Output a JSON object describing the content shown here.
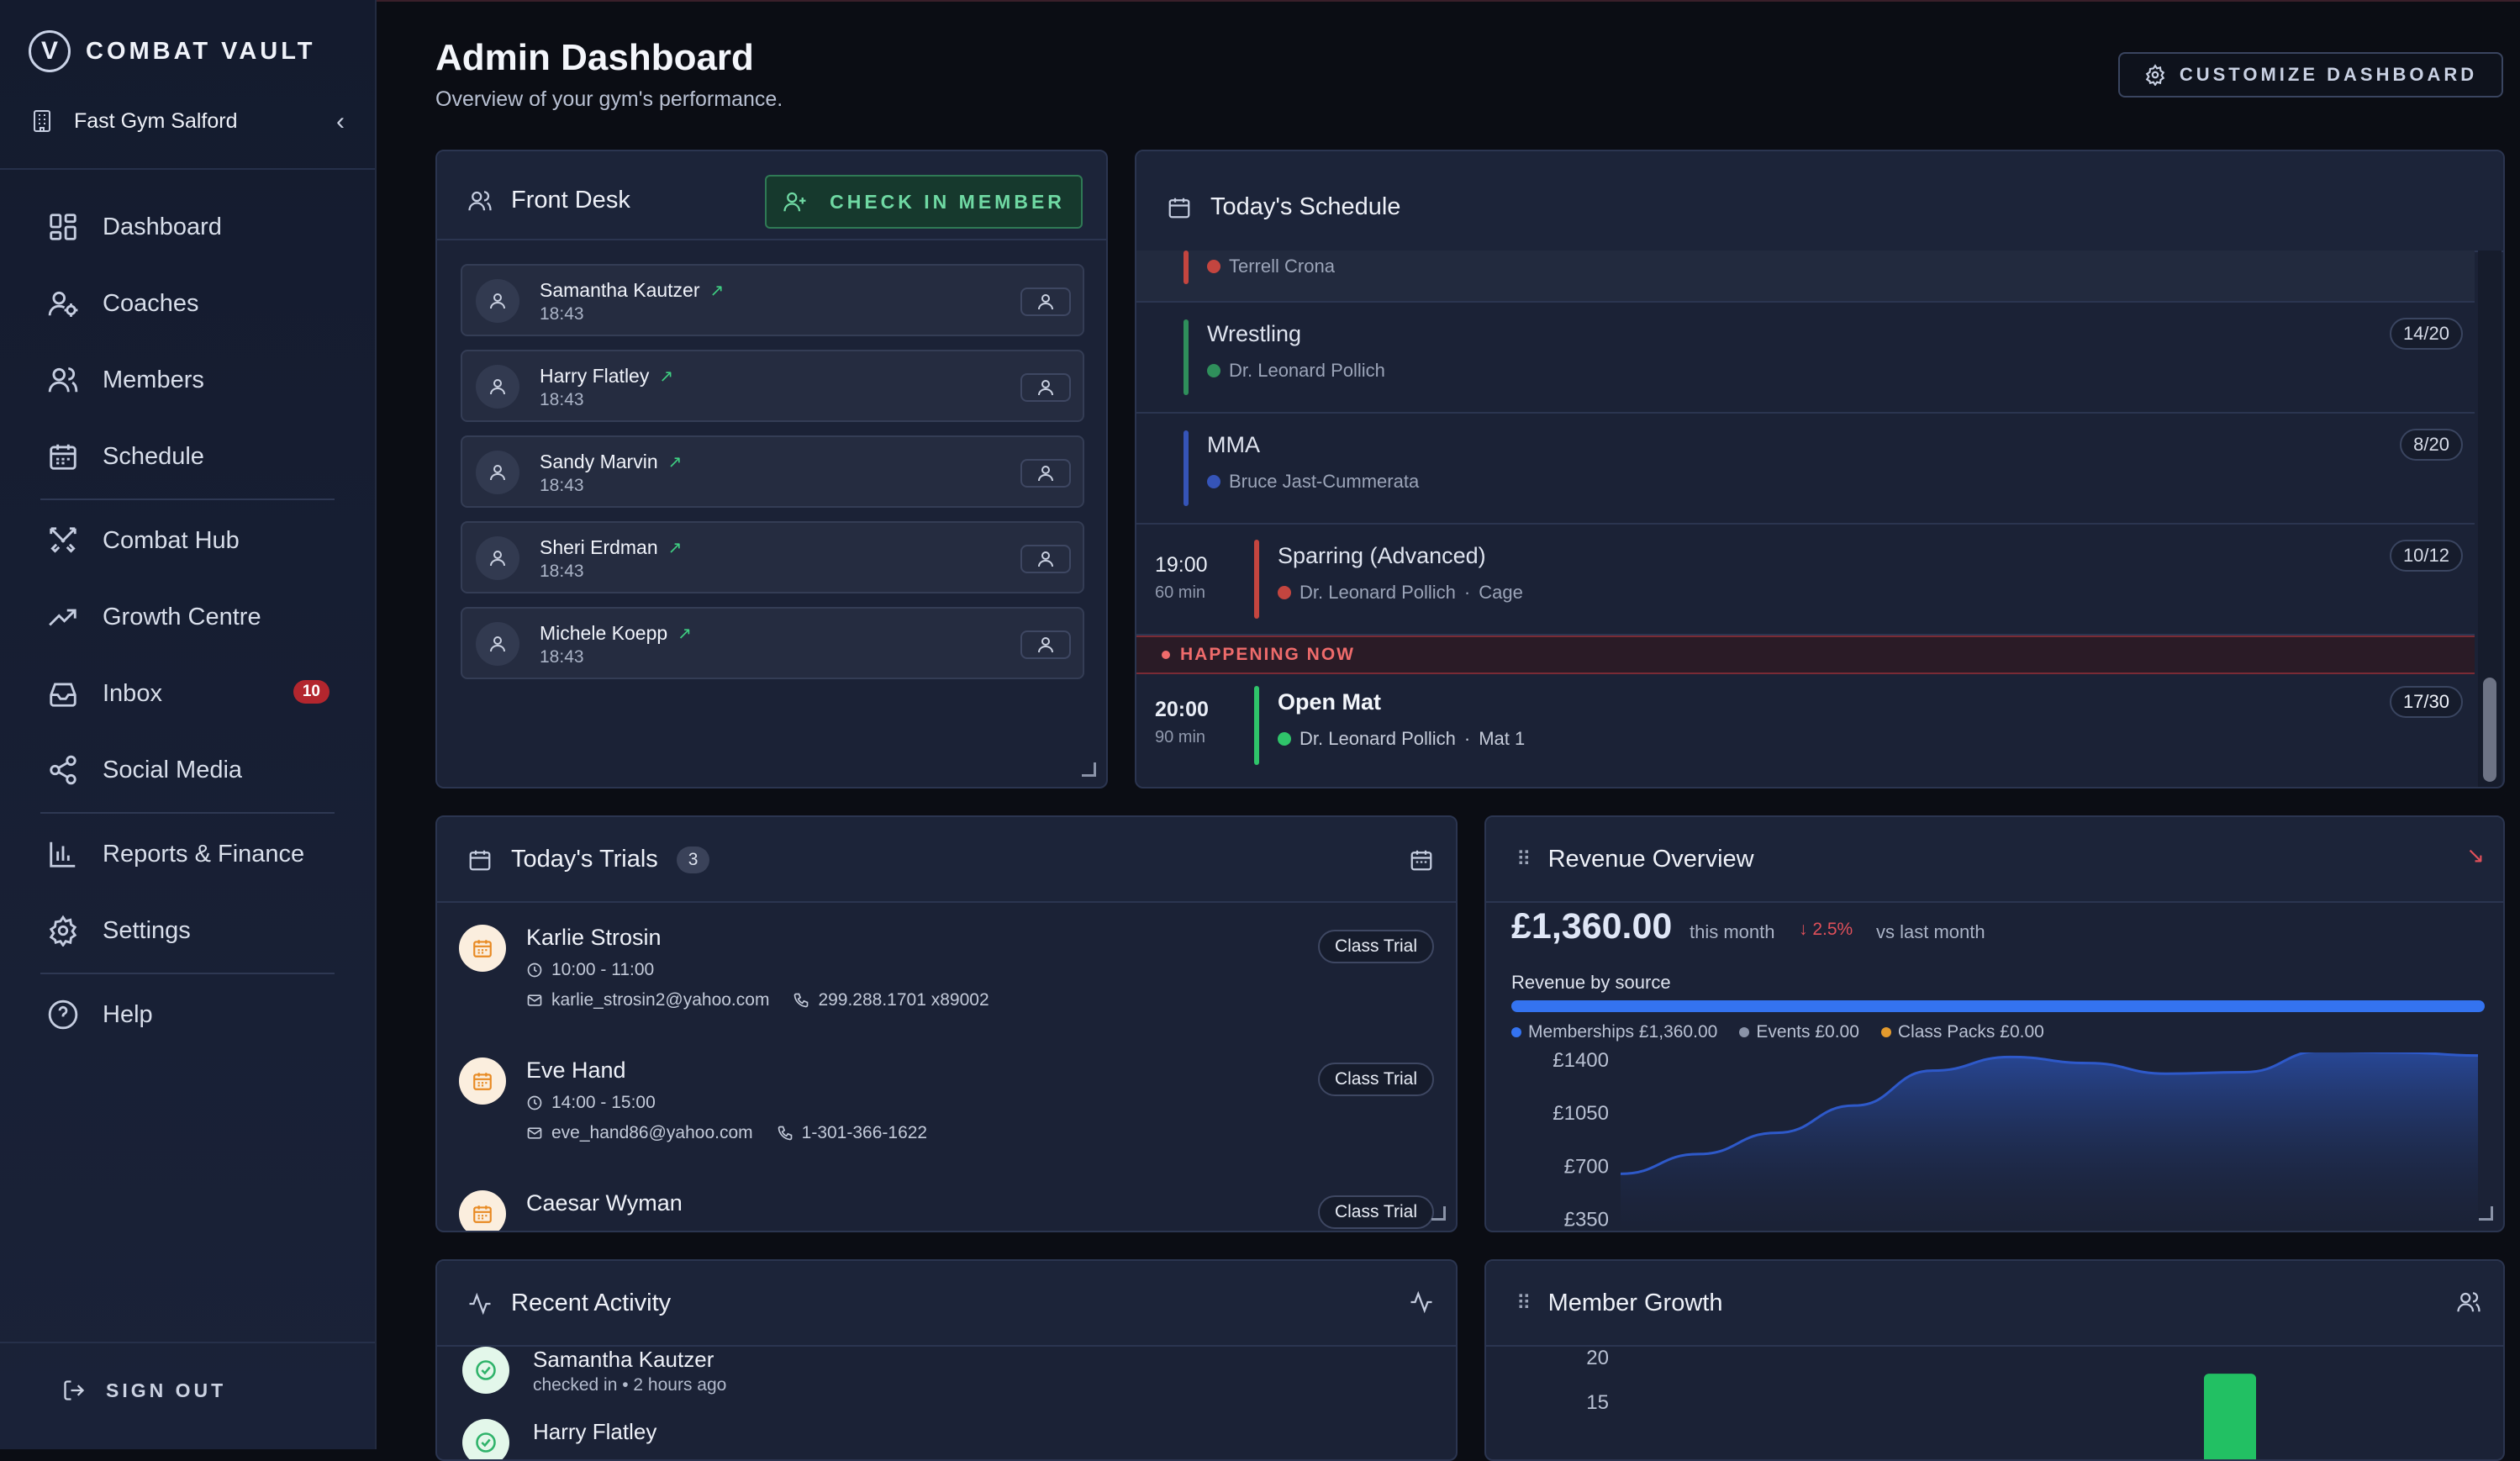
{
  "brand": {
    "logo_letter": "V",
    "name": "COMBAT VAULT"
  },
  "gym": {
    "name": "Fast Gym Salford"
  },
  "nav": {
    "items": [
      {
        "label": "Dashboard",
        "icon": "dashboard-icon"
      },
      {
        "label": "Coaches",
        "icon": "coaches-icon"
      },
      {
        "label": "Members",
        "icon": "members-icon"
      },
      {
        "label": "Schedule",
        "icon": "calendar-icon"
      },
      {
        "label": "Combat Hub",
        "icon": "swords-icon"
      },
      {
        "label": "Growth Centre",
        "icon": "trending-up-icon"
      },
      {
        "label": "Inbox",
        "icon": "inbox-icon",
        "badge": "10"
      },
      {
        "label": "Social Media",
        "icon": "share-icon"
      },
      {
        "label": "Reports & Finance",
        "icon": "bar-chart-icon"
      },
      {
        "label": "Settings",
        "icon": "gear-icon"
      },
      {
        "label": "Help",
        "icon": "help-icon"
      }
    ],
    "sign_out": "SIGN OUT"
  },
  "header": {
    "title": "Admin Dashboard",
    "subtitle": "Overview of your gym's performance.",
    "customize": "CUSTOMIZE DASHBOARD"
  },
  "front_desk": {
    "title": "Front Desk",
    "checkin": "CHECK IN MEMBER",
    "members": [
      {
        "name": "Samantha Kautzer",
        "time": "18:43"
      },
      {
        "name": "Harry Flatley",
        "time": "18:43"
      },
      {
        "name": "Sandy Marvin",
        "time": "18:43"
      },
      {
        "name": "Sheri Erdman",
        "time": "18:43"
      },
      {
        "name": "Michele Koepp",
        "time": "18:43"
      }
    ]
  },
  "schedule": {
    "title": "Today's Schedule",
    "partial_coach": "Terrell Crona",
    "classes": [
      {
        "name": "Wrestling",
        "coach": "Dr. Leonard Pollich",
        "capacity": "14/20",
        "color": "#2f8f5b"
      },
      {
        "name": "MMA",
        "coach": "Bruce Jast-Cummerata",
        "capacity": "8/20",
        "color": "#3554b8"
      },
      {
        "time": "19:00",
        "duration": "60 min",
        "name": "Sparring (Advanced)",
        "coach": "Dr. Leonard Pollich",
        "location": "Cage",
        "capacity": "10/12",
        "color": "#c4453f"
      }
    ],
    "happening_now": "HAPPENING NOW",
    "current": {
      "time": "20:00",
      "duration": "90 min",
      "name": "Open Mat",
      "coach": "Dr. Leonard Pollich",
      "location": "Mat 1",
      "capacity": "17/30",
      "color": "#2fc46a"
    }
  },
  "trials": {
    "title": "Today's Trials",
    "count": "3",
    "items": [
      {
        "name": "Karlie Strosin",
        "time": "10:00 - 11:00",
        "email": "karlie_strosin2@yahoo.com",
        "phone": "299.288.1701 x89002",
        "tag": "Class Trial"
      },
      {
        "name": "Eve Hand",
        "time": "14:00 - 15:00",
        "email": "eve_hand86@yahoo.com",
        "phone": "1-301-366-1622",
        "tag": "Class Trial"
      },
      {
        "name": "Caesar Wyman",
        "time": "",
        "email": "",
        "phone": "",
        "tag": "Class Trial"
      }
    ]
  },
  "revenue": {
    "title": "Revenue Overview",
    "amount": "£1,360.00",
    "period": "this month",
    "change": "↓ 2.5%",
    "vs": "vs last month",
    "by_source": "Revenue by source",
    "legend": [
      {
        "label": "Memberships £1,360.00",
        "color": "#3473f0"
      },
      {
        "label": "Events £0.00",
        "color": "#8a93a8"
      },
      {
        "label": "Class Packs £0.00",
        "color": "#e39a2d"
      }
    ],
    "chart_data": {
      "type": "area",
      "ytick_labels": [
        "£1400",
        "£1050",
        "£700",
        "£350"
      ],
      "yticks": [
        1400,
        1050,
        700,
        350
      ],
      "ylim": [
        275,
        1450
      ],
      "values": [
        650,
        780,
        920,
        1100,
        1330,
        1420,
        1380,
        1310,
        1320,
        1460,
        1450,
        1430
      ],
      "color": "#2e59c9"
    }
  },
  "activity": {
    "title": "Recent Activity",
    "items": [
      {
        "name": "Samantha Kautzer",
        "desc": "checked in • 2 hours ago"
      },
      {
        "name": "Harry Flatley",
        "desc": ""
      }
    ]
  },
  "member_growth": {
    "title": "Member Growth",
    "chart_data": {
      "type": "bar",
      "yticks": [
        20,
        15
      ],
      "bars": [
        {
          "value": 16,
          "color": "#22c063"
        }
      ]
    }
  }
}
